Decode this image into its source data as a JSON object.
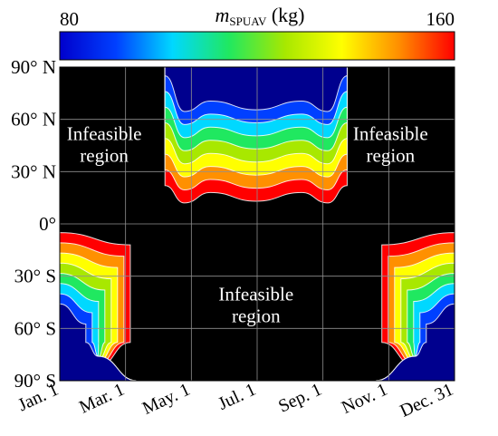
{
  "chart_data": {
    "type": "heatmap",
    "title": "m",
    "title_subscript": "SPUAV",
    "title_unit": " (kg)",
    "colorbar": {
      "min_label": "80",
      "max_label": "160",
      "range": [
        80,
        160
      ],
      "stops": [
        "#0000cc",
        "#0040ff",
        "#00d8ff",
        "#20e860",
        "#a8e800",
        "#ffff00",
        "#ff9000",
        "#ff0000"
      ]
    },
    "x_ticks": [
      "Jan. 1",
      "Mar. 1",
      "May. 1",
      "Jul. 1",
      "Sep. 1",
      "Nov. 1",
      "Dec. 31"
    ],
    "y_ticks": [
      "90° N",
      "60° N",
      "30° N",
      "0°",
      "30° S",
      "60° S",
      "90° S"
    ],
    "x_range_day": [
      1,
      365
    ],
    "y_range_lat": [
      90,
      -90
    ],
    "infeasible_color": "#000000",
    "deep_blue": "#00008e",
    "annotations": [
      {
        "line1": "Infeasible",
        "line2": "region",
        "day": 42,
        "lat": 46
      },
      {
        "line1": "Infeasible",
        "line2": "region",
        "day": 306,
        "lat": 46
      },
      {
        "line1": "Infeasible",
        "line2": "region",
        "day": 182,
        "lat": -46
      }
    ],
    "contour_levels_kg": [
      90,
      100,
      110,
      120,
      130,
      140,
      150
    ],
    "grid": true
  }
}
